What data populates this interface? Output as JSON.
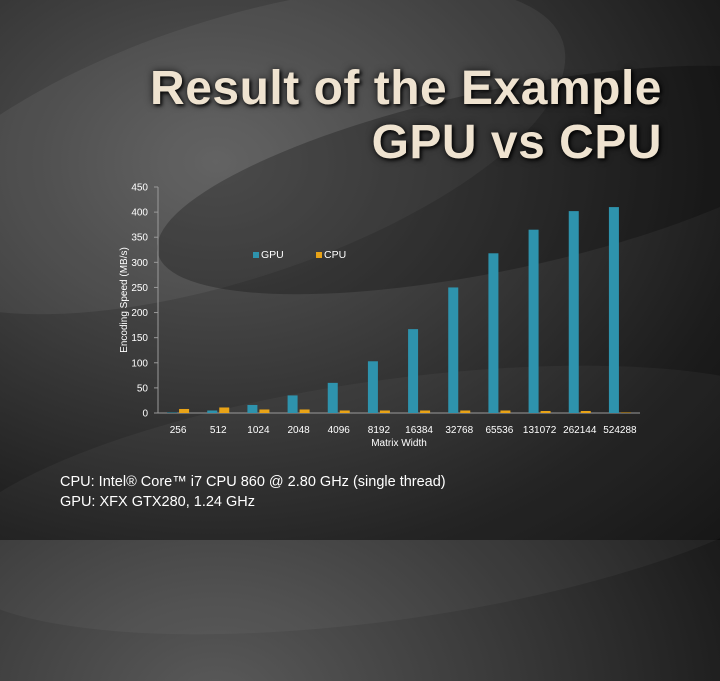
{
  "title": {
    "line1": "Result of the Example",
    "line2": "GPU vs CPU"
  },
  "footer": {
    "line1": "CPU: Intel® Core™ i7 CPU 860 @ 2.80 GHz (single thread)",
    "line2": "GPU: XFX GTX280, 1.24 GHz"
  },
  "colors": {
    "gpu": "#2e93ad",
    "cpu": "#e8a317",
    "axis_text": "#ffffff",
    "gridline": "#9a9a9a"
  },
  "chart_data": {
    "type": "bar",
    "xlabel": "Matrix Width",
    "ylabel": "Encoding Speed (MB/s)",
    "ylim": [
      0,
      450
    ],
    "yticks": [
      0,
      50,
      100,
      150,
      200,
      250,
      300,
      350,
      400,
      450
    ],
    "grid": false,
    "legend_position": "top-center",
    "categories": [
      "256",
      "512",
      "1024",
      "2048",
      "4096",
      "8192",
      "16384",
      "32768",
      "65536",
      "131072",
      "262144",
      "524288"
    ],
    "series": [
      {
        "name": "GPU",
        "values": [
          1,
          5,
          16,
          35,
          60,
          103,
          167,
          250,
          318,
          365,
          402,
          410
        ]
      },
      {
        "name": "CPU",
        "values": [
          8,
          11,
          7,
          7,
          5,
          5,
          5,
          5,
          5,
          4,
          4,
          1
        ]
      }
    ]
  }
}
